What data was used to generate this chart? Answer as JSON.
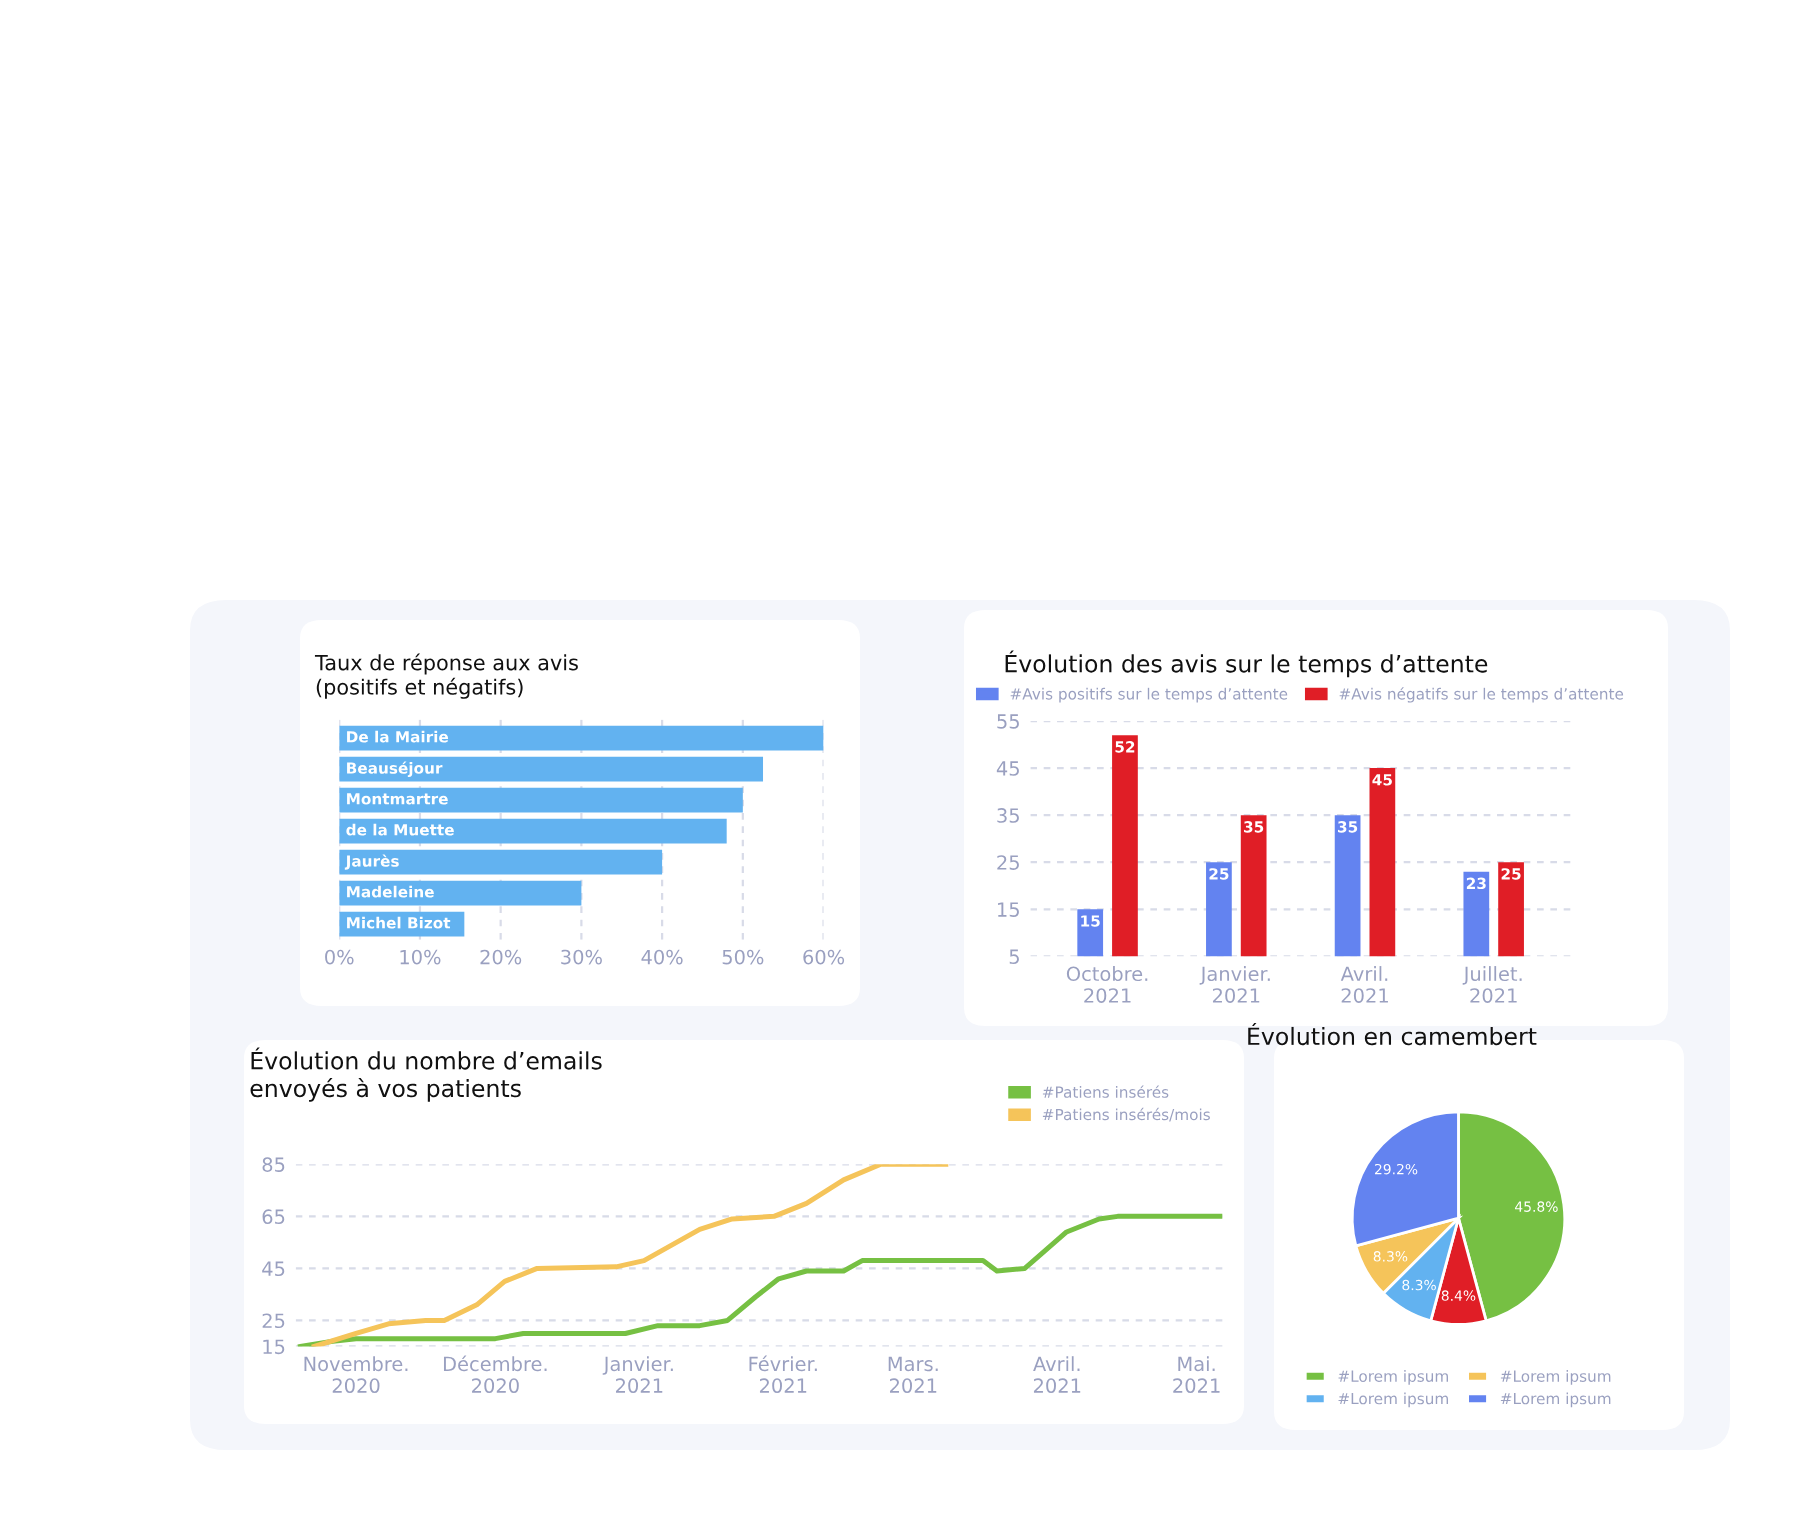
{
  "chart_data": [
    {
      "type": "bar",
      "orientation": "horizontal",
      "title": "Taux de réponse aux avis\n(positifs et négatifs)",
      "categories": [
        "De la Mairie",
        "Beauséjour",
        "Montmartre",
        "de la Muette",
        "Jaurès",
        "Madeleine",
        "Michel Bizot"
      ],
      "values": [
        60,
        52.5,
        50,
        48,
        40,
        30,
        15.5
      ],
      "color": "#62b2f0",
      "xlim": [
        0,
        60
      ],
      "xticks": [
        {
          "value": 0,
          "label": "0%"
        },
        {
          "value": 10,
          "label": "10%"
        },
        {
          "value": 20,
          "label": "20%"
        },
        {
          "value": 30,
          "label": "30%"
        },
        {
          "value": 40,
          "label": "40%"
        },
        {
          "value": 50,
          "label": "50%"
        },
        {
          "value": 60,
          "label": "60%"
        }
      ],
      "grid": "x",
      "tick_labels": "x"
    },
    {
      "type": "bar",
      "title": "Évolution des avis sur le temps d’attente",
      "categories": [
        "Octobre.\n2021",
        "Janvier.\n2021",
        "Avril.\n2021",
        "Juillet.\n2021"
      ],
      "series": [
        {
          "name": "#Avis positifs sur le temps d’attente",
          "color": "#6383f0",
          "values": [
            15,
            25,
            35,
            23
          ]
        },
        {
          "name": "#Avis négatifs sur le temps d’attente",
          "color": "#e01e26",
          "values": [
            52,
            35,
            45,
            25
          ]
        }
      ],
      "ylim": [
        5,
        55
      ],
      "yticks": [
        5,
        15,
        25,
        35,
        45,
        55
      ],
      "grid": "y",
      "legend": "top",
      "data_labels": true
    },
    {
      "type": "line",
      "title": "Évolution du nombre d’emails\nenvoyés à vos patients",
      "series": [
        {
          "name": "#Patiens insérés",
          "color": "#76c043",
          "x": [
            "2020-10-20",
            "2020-10-27",
            "2020-11-01",
            "2020-12-01",
            "2020-12-07",
            "2020-12-29",
            "2021-01-05",
            "2021-01-14",
            "2021-01-20",
            "2021-01-26",
            "2021-01-31",
            "2021-02-06",
            "2021-02-14",
            "2021-02-18",
            "2021-03-16",
            "2021-03-19",
            "2021-03-25",
            "2021-04-03",
            "2021-04-10",
            "2021-04-14",
            "2021-05-06"
          ],
          "values": [
            15,
            17,
            18,
            18,
            20,
            20,
            23,
            23,
            25,
            34,
            41,
            44,
            44,
            48,
            48,
            44,
            45,
            59,
            64,
            65,
            65
          ]
        },
        {
          "name": "#Patiens insérés/mois",
          "color": "#f5c45a",
          "x": [
            "2020-10-23",
            "2020-11-01",
            "2020-11-08",
            "2020-11-16",
            "2020-11-20",
            "2020-11-27",
            "2020-12-03",
            "2020-12-10",
            "2020-12-27",
            "2021-01-02",
            "2021-01-14",
            "2021-01-21",
            "2021-01-30",
            "2021-02-06",
            "2021-02-14",
            "2021-02-22",
            "2021-03-08"
          ],
          "values": [
            15,
            20,
            23.7,
            25,
            25,
            31,
            40,
            45,
            45.6,
            48,
            60,
            64,
            65,
            70,
            79,
            85,
            85
          ]
        }
      ],
      "xlim": [
        "2020-10-19",
        "2021-05-07"
      ],
      "xticks": [
        {
          "value": "2020-11-01",
          "label": "Novembre.\n2020"
        },
        {
          "value": "2020-12-01",
          "label": "Décembre.\n2020"
        },
        {
          "value": "2021-01-01",
          "label": "Janvier.\n2021"
        },
        {
          "value": "2021-02-01",
          "label": "Février.\n2021"
        },
        {
          "value": "2021-03-01",
          "label": "Mars.\n2021"
        },
        {
          "value": "2021-04-01",
          "label": "Avril.\n2021"
        },
        {
          "value": "2021-05-01",
          "label": "Mai.\n2021"
        }
      ],
      "ylim": [
        15,
        85
      ],
      "yticks": [
        15,
        25,
        45,
        65,
        85
      ],
      "grid": "y",
      "legend": "top right",
      "line_style": "solid",
      "marker": "none"
    },
    {
      "type": "pie",
      "title": "Évolution en camembert",
      "categories": [
        "#Lorem ipsum",
        null,
        "#Lorem ipsum",
        "#Lorem ipsum",
        "#Lorem ipsum"
      ],
      "values": [
        45.8,
        8.4,
        8.3,
        8.3,
        29.2
      ],
      "colors": [
        "#76c043",
        "#e01e26",
        "#62b2f0",
        "#f5c45a",
        "#6383f0"
      ],
      "value_labels": [
        "45.8%",
        "8.4%",
        "8.3%",
        "8.3%",
        "29.2%"
      ],
      "legend": "bottom"
    }
  ]
}
